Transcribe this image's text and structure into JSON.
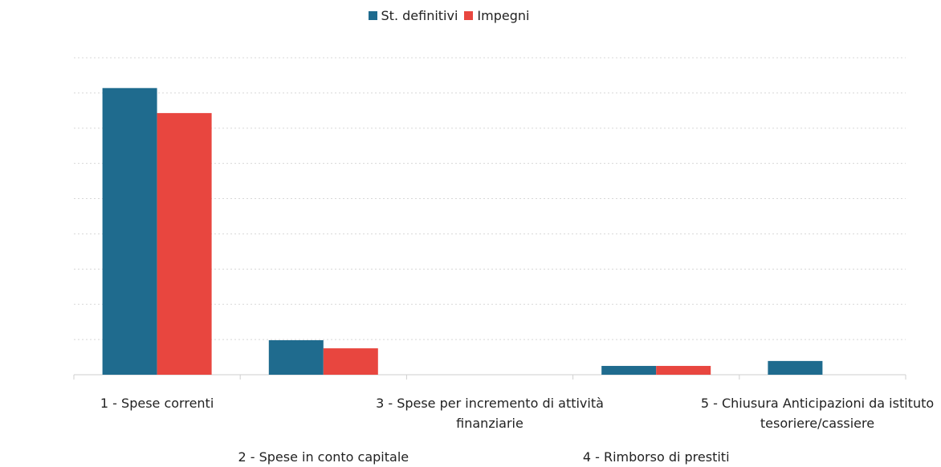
{
  "chart_data": {
    "type": "bar",
    "categories": [
      "1 - Spese correnti",
      "2 - Spese in conto capitale",
      "3 - Spese per incremento di attività finanziarie",
      "4 - Rimborso di prestiti",
      "5 - Chiusura Anticipazioni da istituto tesoriere/cassiere"
    ],
    "series": [
      {
        "name": "St. definitivi",
        "color": "#1f6b8e",
        "values": [
          8.14,
          0.98,
          0,
          0.25,
          0.39
        ]
      },
      {
        "name": "Impegni",
        "color": "#e8463f",
        "values": [
          7.43,
          0.75,
          0,
          0.25,
          0
        ]
      }
    ],
    "ylim": [
      0,
      9
    ],
    "yticks": [
      0,
      1,
      2,
      3,
      4,
      5,
      6,
      7,
      8,
      9
    ],
    "grid": true,
    "legend": "top"
  }
}
